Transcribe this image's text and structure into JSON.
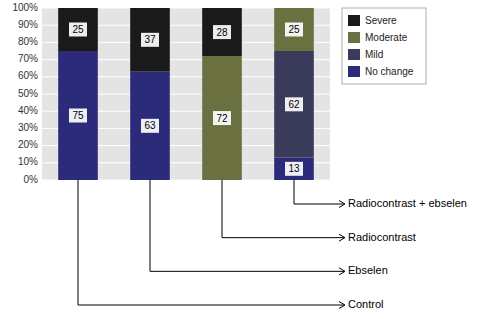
{
  "chart_data": {
    "type": "bar",
    "stacked": true,
    "categories": [
      "Control",
      "Ebselen",
      "Radiocontrast",
      "Radiocontrast + ebselen"
    ],
    "series": [
      {
        "name": "No change",
        "color": "#2b2b7a",
        "values": [
          75,
          63,
          0,
          13
        ]
      },
      {
        "name": "Mild",
        "color": "#3a3a5a",
        "values": [
          0,
          0,
          0,
          62
        ]
      },
      {
        "name": "Moderate",
        "color": "#6b7040",
        "values": [
          0,
          0,
          72,
          25
        ]
      },
      {
        "name": "Severe",
        "color": "#1a1a1a",
        "values": [
          25,
          37,
          28,
          0
        ]
      }
    ],
    "ylim": [
      0,
      100
    ],
    "yticks": [
      {
        "value": 0,
        "label": "0%"
      },
      {
        "value": 10,
        "label": "10%"
      },
      {
        "value": 20,
        "label": "20%"
      },
      {
        "value": 30,
        "label": "30%"
      },
      {
        "value": 40,
        "label": "40%"
      },
      {
        "value": 50,
        "label": "50%"
      },
      {
        "value": 60,
        "label": "60%"
      },
      {
        "value": 70,
        "label": "70%"
      },
      {
        "value": 80,
        "label": "80%"
      },
      {
        "value": 90,
        "label": "90%"
      },
      {
        "value": 100,
        "label": "100%"
      }
    ],
    "grid": true,
    "legend": "right",
    "data_labels": true,
    "tick_labels": "y"
  }
}
